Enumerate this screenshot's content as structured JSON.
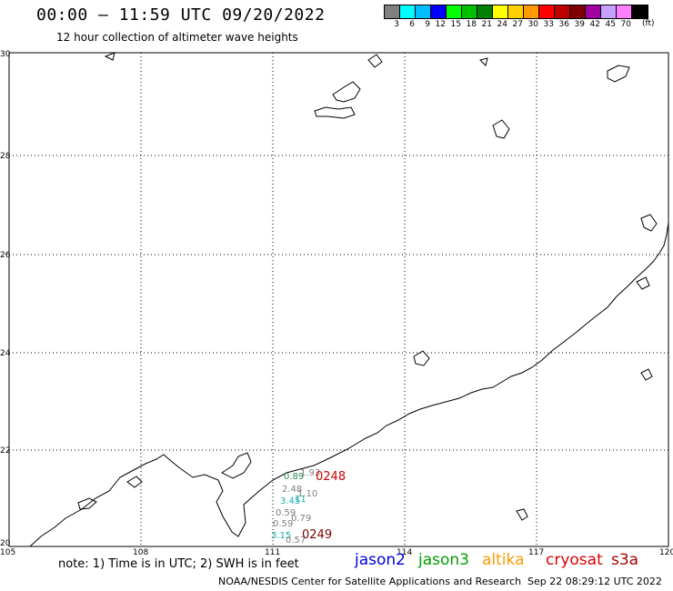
{
  "header": {
    "title": "00:00 – 11:59 UTC 09/20/2022",
    "subtitle": "12 hour collection of altimeter wave heights"
  },
  "color_scale": {
    "unit": "(ft)",
    "bins": [
      {
        "label": "3",
        "color": "#808080"
      },
      {
        "label": "6",
        "color": "#00ffff"
      },
      {
        "label": "9",
        "color": "#00bfff"
      },
      {
        "label": "12",
        "color": "#0000ff"
      },
      {
        "label": "15",
        "color": "#00ff00"
      },
      {
        "label": "18",
        "color": "#00c000"
      },
      {
        "label": "21",
        "color": "#008000"
      },
      {
        "label": "24",
        "color": "#ffff00"
      },
      {
        "label": "27",
        "color": "#ffd000"
      },
      {
        "label": "30",
        "color": "#ff9900"
      },
      {
        "label": "33",
        "color": "#ff0000"
      },
      {
        "label": "36",
        "color": "#c00000"
      },
      {
        "label": "39",
        "color": "#800000"
      },
      {
        "label": "42",
        "color": "#a000a0"
      },
      {
        "label": "45",
        "color": "#c8a0ff"
      },
      {
        "label": "70",
        "color": "#ff80ff"
      },
      {
        "label": "",
        "color": "#000000"
      }
    ]
  },
  "map": {
    "lon_ticks": [
      "105",
      "108",
      "111",
      "114",
      "117",
      "120"
    ],
    "lat_ticks": [
      "30",
      "28",
      "26",
      "24",
      "22",
      "20"
    ],
    "wave_labels": [
      {
        "text": "0.89",
        "color": "#2e8b57"
      },
      {
        "text": "1.93",
        "color": "#808080"
      },
      {
        "text": "2.48",
        "color": "#808080"
      },
      {
        "text": "1.10",
        "color": "#808080"
      },
      {
        "text": "3.45",
        "color": "#1ab0b0"
      },
      {
        "text": "11",
        "color": "#1ab0b0"
      },
      {
        "text": "0.59",
        "color": "#808080"
      },
      {
        "text": "0.79",
        "color": "#808080"
      },
      {
        "text": "0.59",
        "color": "#808080"
      },
      {
        "text": "3.15",
        "color": "#1ab0b0"
      },
      {
        "text": "0.57",
        "color": "#808080"
      }
    ],
    "time_labels": [
      {
        "text": "0248",
        "color": "#cc0000"
      },
      {
        "text": "0249",
        "color": "#800000"
      }
    ]
  },
  "footer": {
    "note": "note: 1) Time is in UTC; 2) SWH is in feet",
    "satellites": [
      {
        "name": "jason2",
        "color": "#0000dd"
      },
      {
        "name": "jason3",
        "color": "#00a000"
      },
      {
        "name": "altika",
        "color": "#ff9900"
      },
      {
        "name": "cryosat",
        "color": "#dd0000"
      },
      {
        "name": "s3a",
        "color": "#aa0000"
      }
    ],
    "credit": "NOAA/NESDIS Center for Satellite Applications and Research",
    "timestamp": "Sep 22 08:29:12 UTC 2022"
  }
}
